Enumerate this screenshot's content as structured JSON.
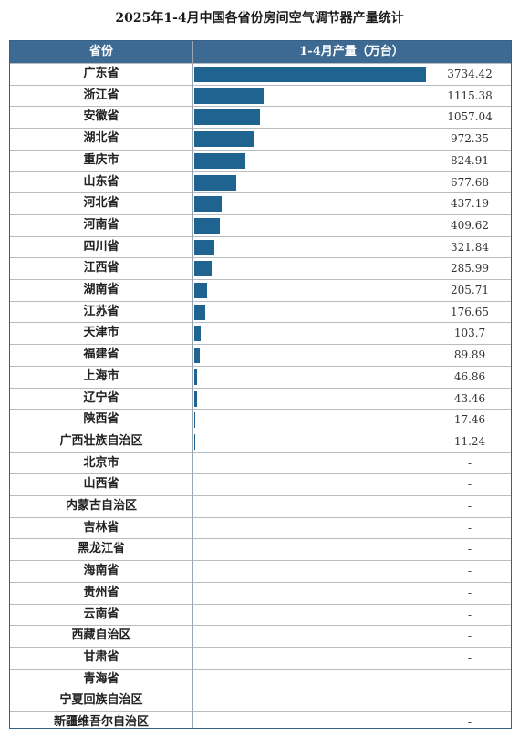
{
  "title": "2025年1-4月中国各省份房间空气调节器产量统计",
  "header": {
    "province": "省份",
    "value": "1-4月产量（万台）"
  },
  "bar_color": "#1f6391",
  "header_color": "#3d6a93",
  "chart_data": {
    "type": "bar",
    "orientation": "horizontal",
    "title": "2025年1-4月中国各省份房间空气调节器产量统计",
    "xlabel": "1-4月产量（万台）",
    "ylabel": "省份",
    "categories": [
      "广东省",
      "浙江省",
      "安徽省",
      "湖北省",
      "重庆市",
      "山东省",
      "河北省",
      "河南省",
      "四川省",
      "江西省",
      "湖南省",
      "江苏省",
      "天津市",
      "福建省",
      "上海市",
      "辽宁省",
      "陕西省",
      "广西壮族自治区",
      "北京市",
      "山西省",
      "内蒙古自治区",
      "吉林省",
      "黑龙江省",
      "海南省",
      "贵州省",
      "云南省",
      "西藏自治区",
      "甘肃省",
      "青海省",
      "宁夏回族自治区",
      "新疆维吾尔自治区"
    ],
    "values": [
      3734.42,
      1115.38,
      1057.04,
      972.35,
      824.91,
      677.68,
      437.19,
      409.62,
      321.84,
      285.99,
      205.71,
      176.65,
      103.7,
      89.89,
      46.86,
      43.46,
      17.46,
      11.24,
      null,
      null,
      null,
      null,
      null,
      null,
      null,
      null,
      null,
      null,
      null,
      null,
      null
    ],
    "labels": [
      "3734.42",
      "1115.38",
      "1057.04",
      "972.35",
      "824.91",
      "677.68",
      "437.19",
      "409.62",
      "321.84",
      "285.99",
      "205.71",
      "176.65",
      "103.7",
      "89.89",
      "46.86",
      "43.46",
      "17.46",
      "11.24",
      "-",
      "-",
      "-",
      "-",
      "-",
      "-",
      "-",
      "-",
      "-",
      "-",
      "-",
      "-",
      "-"
    ]
  }
}
